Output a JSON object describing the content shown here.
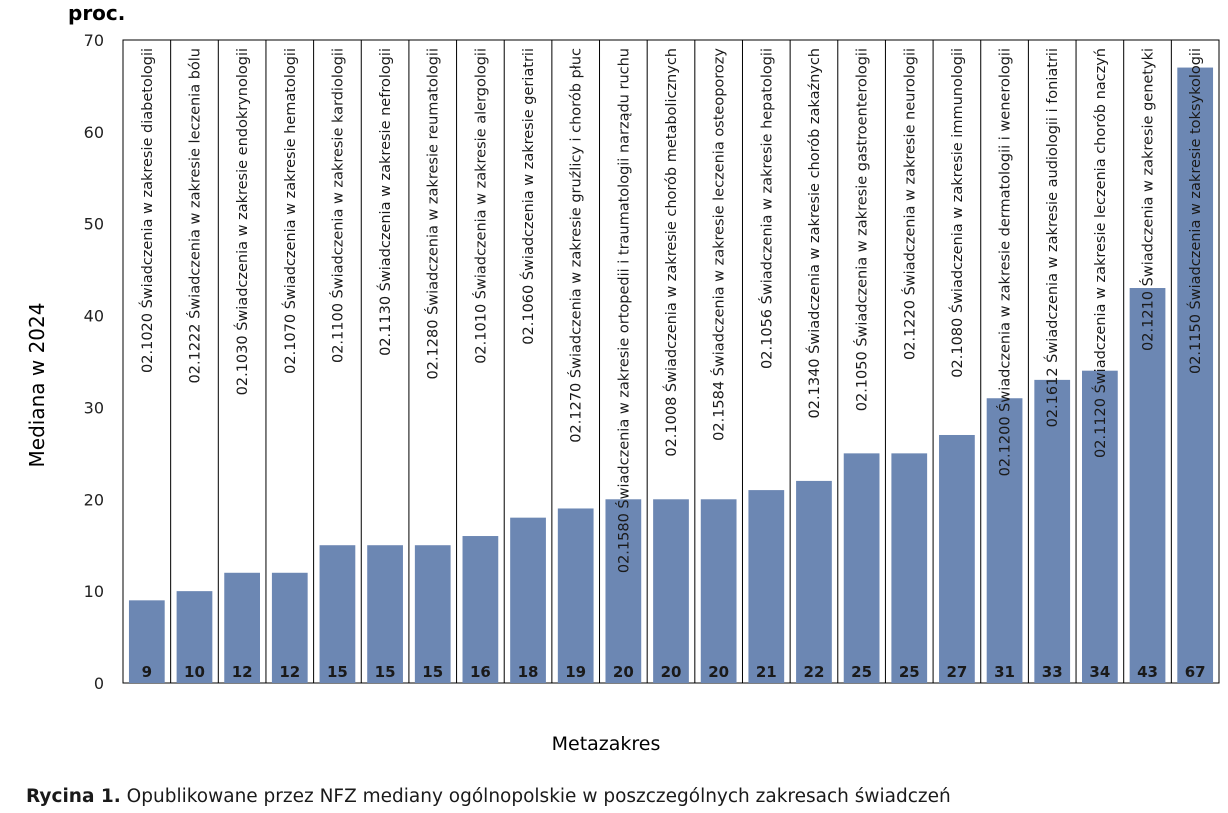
{
  "chart_data": {
    "type": "bar",
    "unit_label": "proc.",
    "ylabel": "Mediana w 2024",
    "xlabel": "Metazakres",
    "ylim": [
      0,
      70
    ],
    "yticks": [
      0,
      10,
      20,
      30,
      40,
      50,
      60,
      70
    ],
    "grid": false,
    "bar_color": "#6c87b3",
    "categories": [
      "02.1020 Świadczenia w zakresie diabetologii",
      "02.1222 Świadczenia w zakresie leczenia bólu",
      "02.1030 Świadczenia w zakresie endokrynologii",
      "02.1070 Świadczenia w zakresie hematologii",
      "02.1100 Świadczenia w zakresie kardiologii",
      "02.1130 Świadczenia w zakresie nefrologii",
      "02.1280 Świadczenia w zakresie reumatologii",
      "02.1010 Świadczenia w zakresie alergologii",
      "02.1060 Świadczenia w zakresie geriatrii",
      "02.1270 Świadczenia w zakresie gruźlicy i chorób płuc",
      "02.1580 Świadczenia w zakresie ortopedii i traumatologii narządu ruchu",
      "02.1008 Świadczenia w zakresie chorób metabolicznych",
      "02.1584 Świadczenia w zakresie leczenia osteoporozy",
      "02.1056 Świadczenia w zakresie hepatologii",
      "02.1340 Świadczenia w zakresie chorób zakaźnych",
      "02.1050 Świadczenia w zakresie gastroenterologii",
      "02.1220 Świadczenia w zakresie neurologii",
      "02.1080 Świadczenia w zakresie immunologii",
      "02.1200 Świadczenia w zakresie dermatologii i wenerologii",
      "02.1612 Świadczenia w zakresie audiologii i foniatrii",
      "02.1120 Świadczenia w zakresie leczenia chorób naczyń",
      "02.1210 Świadczenia w zakresie genetyki",
      "02.1150 Świadczenia w zakresie toksykologii"
    ],
    "values": [
      9,
      10,
      12,
      12,
      15,
      15,
      15,
      16,
      18,
      19,
      20,
      20,
      20,
      21,
      22,
      25,
      25,
      27,
      31,
      33,
      34,
      43,
      67
    ]
  },
  "caption": {
    "label": "Rycina 1.",
    "text": "Opublikowane przez NFZ mediany ogólnopolskie w poszczególnych zakresach świadczeń"
  }
}
